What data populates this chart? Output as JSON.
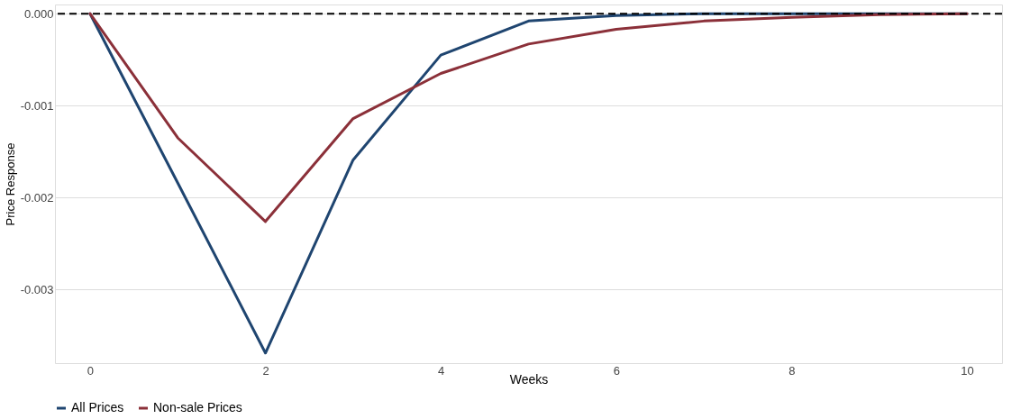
{
  "chart_data": {
    "type": "line",
    "xlabel": "Weeks",
    "ylabel": "Price Response",
    "x": [
      0,
      1,
      2,
      3,
      4,
      5,
      6,
      7,
      8,
      9,
      10
    ],
    "series": [
      {
        "name": "All Prices",
        "color": "#1f4570",
        "values": [
          0,
          -0.00184,
          -0.00369,
          -0.00159,
          -0.00045,
          -8e-05,
          -2e-05,
          0,
          0,
          0,
          0
        ]
      },
      {
        "name": "Non-sale Prices",
        "color": "#8b3039",
        "values": [
          0,
          -0.00135,
          -0.00226,
          -0.00114,
          -0.00065,
          -0.00033,
          -0.00017,
          -8e-05,
          -4e-05,
          -1e-05,
          0
        ]
      }
    ],
    "xlim": [
      -0.4,
      10.4
    ],
    "xticks": [
      0,
      2,
      4,
      6,
      8,
      10
    ],
    "ylim": [
      -0.0038,
      0.0001
    ],
    "yticks": [
      {
        "value": -0.003,
        "label": "-0.003"
      },
      {
        "value": -0.002,
        "label": "-0.002"
      },
      {
        "value": -0.001,
        "label": "-0.001"
      },
      {
        "value": 0,
        "label": "0.000"
      }
    ],
    "ref_lines": [
      {
        "axis": "y",
        "value": 0,
        "color": "#000000",
        "line_style": "dashed"
      }
    ],
    "grid": "y",
    "legend": "bottom",
    "marker": "none",
    "line_style": "solid"
  }
}
